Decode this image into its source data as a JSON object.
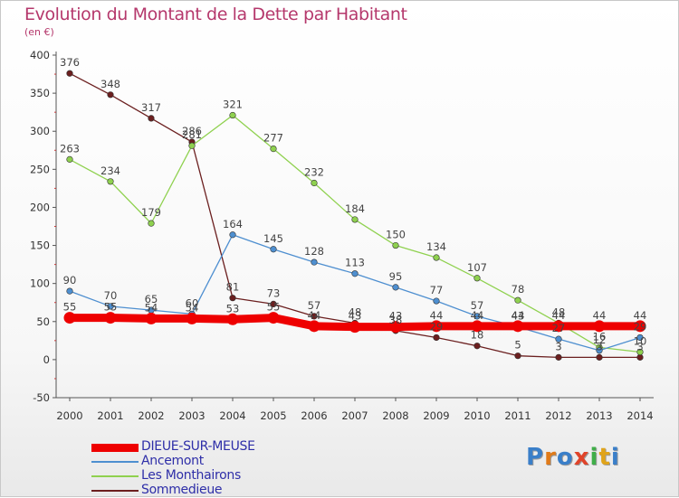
{
  "title": "Evolution du Montant de la Dette par Habitant",
  "unit_label": "(en €)",
  "logo": {
    "text": "Proxiti",
    "colors": [
      "#3a7fc9",
      "#e07b1a",
      "#3a7fc9",
      "#e0442a",
      "#3fae49",
      "#e0a41a",
      "#3a7fc9"
    ]
  },
  "chart_data": {
    "type": "line",
    "title": "Evolution du Montant de la Dette par Habitant",
    "ylabel": "(en €)",
    "xlabel": "",
    "x": [
      2000,
      2001,
      2002,
      2003,
      2004,
      2005,
      2006,
      2007,
      2008,
      2009,
      2010,
      2011,
      2012,
      2013,
      2014
    ],
    "ylim": [
      -50,
      400
    ],
    "yticks": [
      -50,
      0,
      50,
      100,
      150,
      200,
      250,
      300,
      350,
      400
    ],
    "grid": false,
    "legend_position": "bottom-left",
    "series": [
      {
        "name": "DIEUE-SUR-MEUSE",
        "color": "#ee0000",
        "values": [
          55,
          55,
          54,
          54,
          53,
          55,
          44,
          43,
          43,
          44,
          44,
          44,
          44,
          44,
          44
        ],
        "labels": [
          "55",
          "55",
          "54",
          "54",
          "53",
          "55",
          "44",
          "43",
          "43",
          "44",
          "44",
          "44",
          "44",
          "44",
          "44"
        ]
      },
      {
        "name": "Ancemont",
        "color": "#4e8fd0",
        "values": [
          90,
          70,
          65,
          60,
          164,
          145,
          128,
          113,
          95,
          77,
          57,
          43,
          27,
          12,
          29
        ],
        "labels": [
          "90",
          "70",
          "65",
          "60",
          "164",
          "145",
          "128",
          "113",
          "95",
          "77",
          "57",
          "43",
          "27",
          "12",
          "29"
        ]
      },
      {
        "name": "Les Monthairons",
        "color": "#8fd14f",
        "values": [
          263,
          234,
          179,
          281,
          321,
          277,
          232,
          184,
          150,
          134,
          107,
          78,
          48,
          16,
          10
        ],
        "labels": [
          "263",
          "234",
          "179",
          "281",
          "321",
          "277",
          "232",
          "184",
          "150",
          "134",
          "107",
          "78",
          "48",
          "16",
          "10"
        ]
      },
      {
        "name": "Sommedieue",
        "color": "#6b1f1f",
        "values": [
          376,
          348,
          317,
          286,
          81,
          73,
          57,
          48,
          38,
          29,
          18,
          5,
          3,
          3,
          3
        ],
        "labels": [
          "376",
          "348",
          "317",
          "286",
          "81",
          "73",
          "57",
          "48",
          "38",
          "29",
          "18",
          "5",
          "3",
          "3",
          "3"
        ]
      }
    ]
  }
}
